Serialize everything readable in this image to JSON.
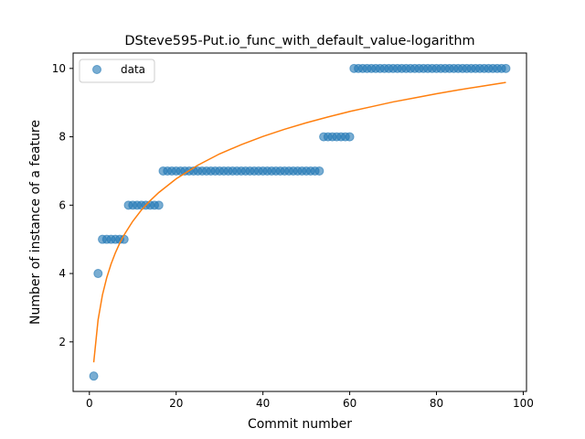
{
  "chart_data": {
    "type": "scatter",
    "title": "DSteve595-Put.io_func_with_default_value-logarithm",
    "xlabel": "Commit number",
    "ylabel": "Number of instance of a feature",
    "xlim": [
      -3.75,
      100.75
    ],
    "ylim": [
      0.55,
      10.45
    ],
    "xticks": [
      0,
      20,
      40,
      60,
      80,
      100
    ],
    "yticks": [
      2,
      4,
      6,
      8,
      10
    ],
    "legend": {
      "placement": "upper-left",
      "entries": [
        "data"
      ]
    },
    "colors": {
      "data": "#1f77b4",
      "fit": "#ff7f0e"
    },
    "series": [
      {
        "name": "data",
        "kind": "scatter",
        "x": [
          1,
          2,
          3,
          4,
          5,
          6,
          7,
          8,
          9,
          10,
          11,
          12,
          13,
          14,
          15,
          16,
          17,
          18,
          19,
          20,
          21,
          22,
          23,
          24,
          25,
          26,
          27,
          28,
          29,
          30,
          31,
          32,
          33,
          34,
          35,
          36,
          37,
          38,
          39,
          40,
          41,
          42,
          43,
          44,
          45,
          46,
          47,
          48,
          49,
          50,
          51,
          52,
          53,
          54,
          55,
          56,
          57,
          58,
          59,
          60,
          61,
          62,
          63,
          64,
          65,
          66,
          67,
          68,
          69,
          70,
          71,
          72,
          73,
          74,
          75,
          76,
          77,
          78,
          79,
          80,
          81,
          82,
          83,
          84,
          85,
          86,
          87,
          88,
          89,
          90,
          91,
          92,
          93,
          94,
          95,
          96
        ],
        "y": [
          1,
          4,
          5,
          5,
          5,
          5,
          5,
          5,
          6,
          6,
          6,
          6,
          6,
          6,
          6,
          6,
          7,
          7,
          7,
          7,
          7,
          7,
          7,
          7,
          7,
          7,
          7,
          7,
          7,
          7,
          7,
          7,
          7,
          7,
          7,
          7,
          7,
          7,
          7,
          7,
          7,
          7,
          7,
          7,
          7,
          7,
          7,
          7,
          7,
          7,
          7,
          7,
          7,
          8,
          8,
          8,
          8,
          8,
          8,
          8,
          10,
          10,
          10,
          10,
          10,
          10,
          10,
          10,
          10,
          10,
          10,
          10,
          10,
          10,
          10,
          10,
          10,
          10,
          10,
          10,
          10,
          10,
          10,
          10,
          10,
          10,
          10,
          10,
          10,
          10,
          10,
          10,
          10,
          10,
          10,
          10
        ]
      },
      {
        "kind": "line",
        "x": [
          1,
          2,
          3,
          4,
          5,
          6,
          7,
          8,
          10,
          12,
          14,
          16,
          20,
          25,
          30,
          35,
          40,
          45,
          50,
          55,
          60,
          65,
          70,
          75,
          80,
          85,
          90,
          96
        ],
        "y": [
          1.4,
          2.64,
          3.37,
          3.88,
          4.28,
          4.61,
          4.89,
          5.13,
          5.53,
          5.86,
          6.13,
          6.37,
          6.77,
          7.17,
          7.5,
          7.77,
          8.01,
          8.22,
          8.41,
          8.58,
          8.74,
          8.88,
          9.02,
          9.14,
          9.26,
          9.37,
          9.47,
          9.59
        ]
      }
    ]
  }
}
